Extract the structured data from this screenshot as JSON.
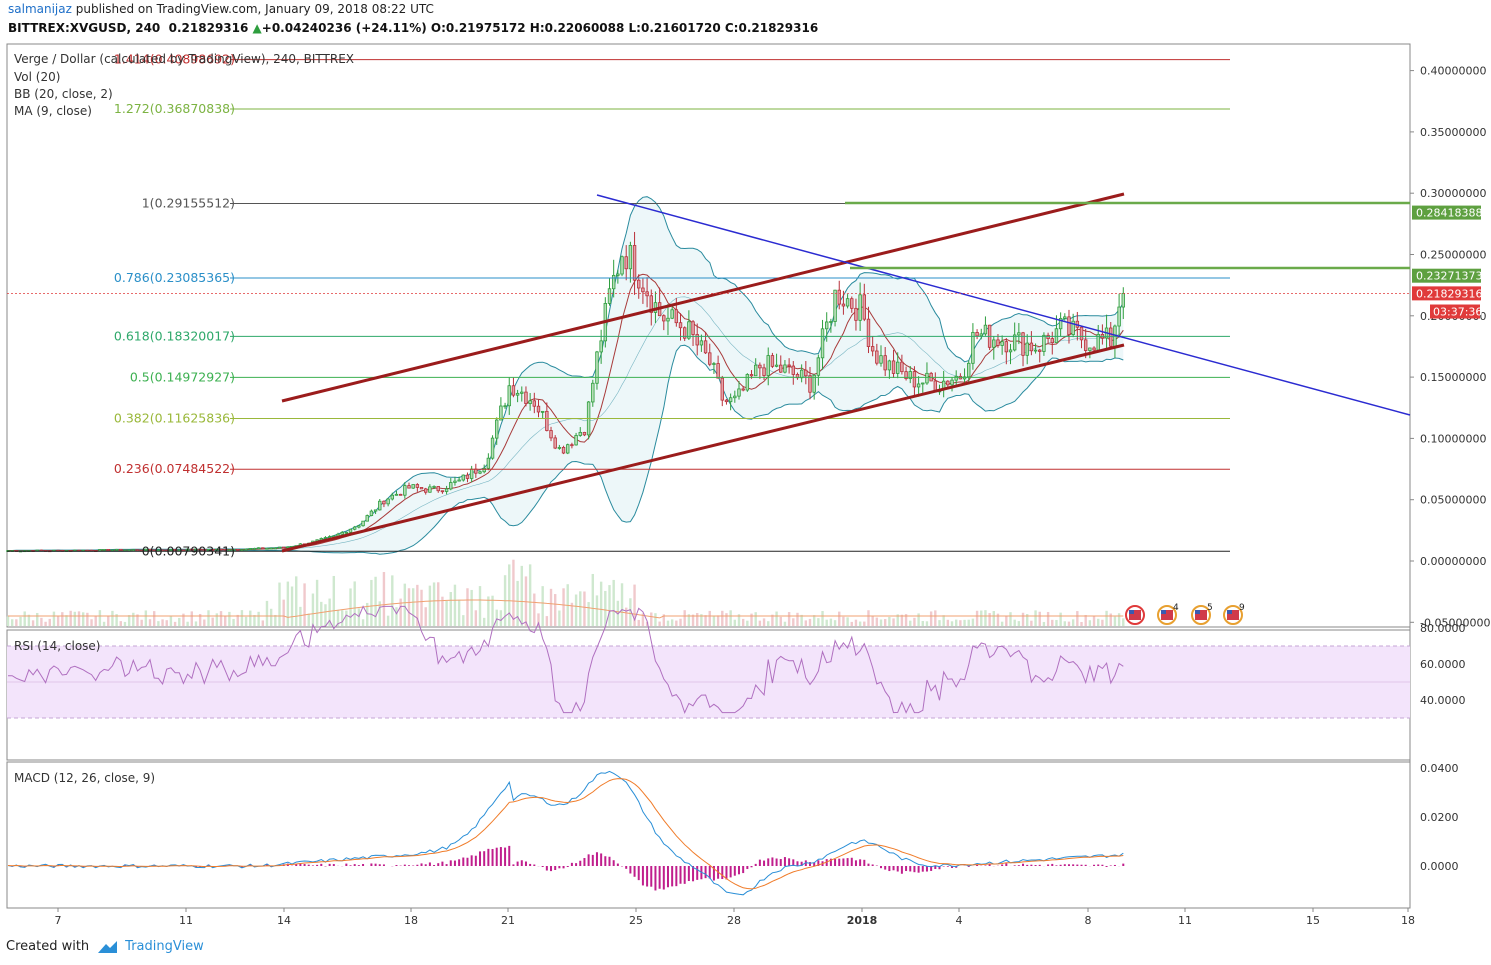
{
  "header": {
    "author": "salmanijaz",
    "published_text": " published on TradingView.com, January 09, 2018 08:22 UTC"
  },
  "symbol_line": {
    "symbol": "BITTREX:XVGUSD, 240",
    "price": "0.21829316",
    "change": "+0.04240236 (+24.11%)",
    "ohlc": "O:0.21975172 H:0.22060088 L:0.21601720 C:0.21829316"
  },
  "legends": {
    "title": "Verge / Dollar (calculated by TradingView), 240, BITTREX",
    "vol": "Vol (20)",
    "bb": "BB (20, close, 2)",
    "ma": "MA (9, close)",
    "rsi": "RSI (14, close)",
    "macd": "MACD (12, 26, close, 9)"
  },
  "footer": {
    "created_with": "Created with",
    "brand": "TradingView"
  },
  "colors": {
    "up": "#2e9e3e",
    "down": "#b8303a",
    "trend_channel": "#9b1c1c",
    "trend_down": "#2b2bd1",
    "bb_line": "#2a8b9e",
    "bb_fill": "#e6f4f6",
    "ma": "#a83a3a",
    "rsi": "#b070c0",
    "rsi_band": "#f3e4fb",
    "macd": "#2a8fd7",
    "signal": "#f07c2a",
    "hist": "#c01e8c",
    "axis_label_green": "#5ea040",
    "axis_label_red": "#e03a3a"
  },
  "chart_data": {
    "type": "candlestick",
    "price_axis": {
      "ticks": [
        "0.40000000",
        "0.35000000",
        "0.30000000",
        "0.25000000",
        "0.20000000",
        "0.15000000",
        "0.10000000",
        "0.05000000",
        "0.00000000",
        "-0.05000000"
      ]
    },
    "x_axis": {
      "ticks": [
        "7",
        "11",
        "14",
        "18",
        "21",
        "25",
        "28",
        "2018",
        "4",
        "8",
        "11",
        "15",
        "18"
      ]
    },
    "fib_levels": [
      {
        "label": "1.414(0.40898692)",
        "value": 0.40898692,
        "color": "#c03030"
      },
      {
        "label": "1.272(0.36870838)",
        "value": 0.36870838,
        "color": "#7cb342"
      },
      {
        "label": "1(0.29155512)",
        "value": 0.29155512,
        "color": "#555555"
      },
      {
        "label": "0.786(0.23085365)",
        "value": 0.23085365,
        "color": "#2a8fc8"
      },
      {
        "label": "0.618(0.18320017)",
        "value": 0.18320017,
        "color": "#2ea86a"
      },
      {
        "label": "0.5(0.14972927)",
        "value": 0.14972927,
        "color": "#3cb050"
      },
      {
        "label": "0.382(0.11625836)",
        "value": 0.11625836,
        "color": "#9ab83a"
      },
      {
        "label": "0.236(0.07484522)",
        "value": 0.07484522,
        "color": "#c03030"
      },
      {
        "label": "0(0.00790341)",
        "value": 0.00790341,
        "color": "#222222"
      }
    ],
    "price_labels": [
      {
        "text": "0.28418388",
        "value": 0.28418388,
        "color": "#5ea040"
      },
      {
        "text": "0.23271373",
        "value": 0.23271373,
        "color": "#5ea040"
      },
      {
        "text": "0.21829316",
        "value": 0.21829316,
        "color": "#e03a3a"
      },
      {
        "text": "03:37:36",
        "value": 0.2035,
        "color": "#e03a3a"
      }
    ],
    "rsi_axis": {
      "ticks": [
        "80.0000",
        "60.0000",
        "40.0000"
      ]
    },
    "macd_axis": {
      "ticks": [
        "0.0400",
        "0.0200",
        "0.0000"
      ]
    },
    "events": [
      "4",
      "5",
      "9"
    ]
  }
}
